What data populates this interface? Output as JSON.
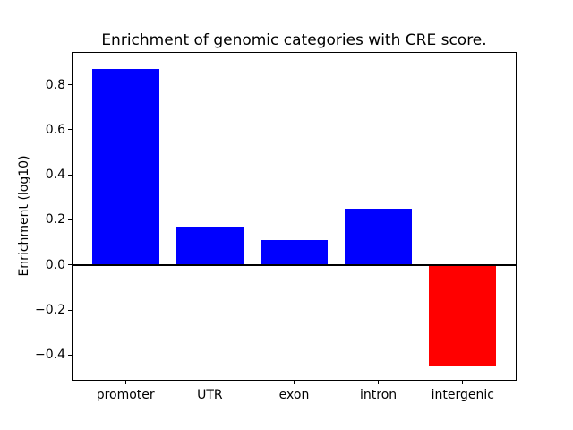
{
  "chart_data": {
    "type": "bar",
    "title": "Enrichment of genomic categories with CRE score.",
    "xlabel": "",
    "ylabel": "Enrichment (log10)",
    "categories": [
      "promoter",
      "UTR",
      "exon",
      "intron",
      "intergenic"
    ],
    "values": [
      0.87,
      0.17,
      0.11,
      0.25,
      -0.45
    ],
    "bar_colors": [
      "#0000ff",
      "#0000ff",
      "#0000ff",
      "#0000ff",
      "#ff0000"
    ],
    "color_meaning": {
      "positive": "#0000ff",
      "negative": "#ff0000"
    },
    "yticks": [
      -0.4,
      -0.2,
      0.0,
      0.2,
      0.4,
      0.6,
      0.8
    ],
    "ytick_labels": [
      "−0.4",
      "−0.2",
      "0.0",
      "0.2",
      "0.4",
      "0.6",
      "0.8"
    ],
    "ylim": [
      -0.514,
      0.945
    ],
    "bar_width_fraction": 0.8,
    "zero_line": {
      "value": 0.0,
      "color": "#000000"
    },
    "grid": false,
    "legend": "none",
    "background_color": "#ffffff",
    "axis_color": "#000000"
  }
}
